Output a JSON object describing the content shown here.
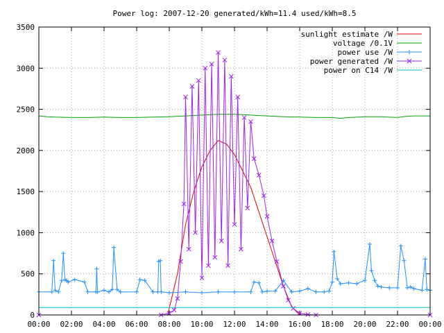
{
  "chart_data": {
    "type": "line",
    "title": "Power log: 2007-12-20 generated/kWh=11.4 used/kWh=8.5",
    "xlabel": "",
    "ylabel": "",
    "xlim": [
      0,
      24
    ],
    "ylim": [
      0,
      3500
    ],
    "grid": true,
    "legend_position": "top-right",
    "x_tick_labels": [
      "00:00",
      "02:00",
      "04:00",
      "06:00",
      "08:00",
      "10:00",
      "12:00",
      "14:00",
      "16:00",
      "18:00",
      "20:00",
      "22:00",
      "00:00"
    ],
    "y_tick_labels": [
      "0",
      "500",
      "1000",
      "1500",
      "2000",
      "2500",
      "3000",
      "3500"
    ],
    "y_ticks": [
      0,
      500,
      1000,
      1500,
      2000,
      2500,
      3000,
      3500
    ],
    "series": [
      {
        "name": "sunlight estimate /W",
        "color": "#e00000",
        "marker": "none",
        "x": [
          0,
          7.9,
          8.5,
          9,
          9.5,
          10,
          10.5,
          11,
          11.5,
          12,
          12.5,
          13,
          13.5,
          14,
          14.5,
          15,
          15.5,
          16,
          24
        ],
        "y": [
          0,
          0,
          500,
          1100,
          1500,
          1800,
          2000,
          2120,
          2080,
          1950,
          1750,
          1550,
          1250,
          950,
          650,
          350,
          100,
          0,
          0
        ]
      },
      {
        "name": "voltage /0.1V",
        "color": "#00a000",
        "marker": "none",
        "x": [
          0,
          0.5,
          1,
          2,
          3,
          4,
          5,
          6,
          7,
          8,
          9,
          10,
          11,
          12,
          13,
          14,
          15,
          16,
          17,
          18,
          18.5,
          19,
          20,
          21,
          22,
          22.5,
          23,
          24
        ],
        "y": [
          2420,
          2410,
          2405,
          2400,
          2400,
          2405,
          2400,
          2400,
          2405,
          2410,
          2420,
          2430,
          2440,
          2440,
          2430,
          2420,
          2410,
          2405,
          2400,
          2400,
          2390,
          2400,
          2410,
          2410,
          2400,
          2415,
          2420,
          2420
        ]
      },
      {
        "name": "power use /W",
        "color": "#1e90ff",
        "marker": "plus",
        "x": [
          0,
          0.8,
          0.9,
          1.0,
          1.2,
          1.4,
          1.5,
          1.6,
          1.7,
          1.8,
          2.2,
          2.8,
          3.0,
          3.5,
          3.55,
          3.6,
          4.0,
          4.3,
          4.5,
          4.6,
          4.8,
          5.0,
          6.0,
          6.2,
          6.5,
          7.0,
          7.3,
          7.35,
          7.45,
          7.5,
          8.0,
          9.0,
          10.0,
          11.0,
          12.0,
          13.0,
          13.2,
          13.5,
          13.7,
          14.0,
          14.5,
          15.0,
          15.5,
          16.0,
          16.5,
          17.0,
          17.5,
          17.8,
          18.0,
          18.1,
          18.3,
          18.5,
          19.0,
          19.5,
          20.0,
          20.3,
          20.4,
          20.6,
          20.8,
          21.0,
          21.5,
          22.0,
          22.2,
          22.4,
          22.6,
          22.8,
          23.0,
          23.5,
          23.7,
          23.8,
          24.0
        ],
        "y": [
          280,
          280,
          660,
          300,
          280,
          420,
          750,
          430,
          420,
          400,
          430,
          400,
          280,
          280,
          560,
          280,
          300,
          280,
          310,
          820,
          310,
          280,
          280,
          430,
          420,
          280,
          280,
          650,
          660,
          280,
          270,
          280,
          270,
          280,
          280,
          280,
          400,
          390,
          280,
          290,
          290,
          420,
          280,
          290,
          320,
          280,
          280,
          290,
          400,
          770,
          440,
          380,
          390,
          380,
          420,
          860,
          540,
          420,
          350,
          340,
          330,
          330,
          840,
          660,
          330,
          340,
          320,
          300,
          680,
          310,
          300
        ]
      },
      {
        "name": "power generated /W",
        "color": "#a020f0",
        "marker": "cross",
        "x": [
          0,
          7.5,
          8.0,
          8.3,
          8.5,
          8.7,
          8.9,
          9.0,
          9.2,
          9.4,
          9.6,
          9.8,
          10.0,
          10.2,
          10.4,
          10.6,
          10.8,
          11.0,
          11.2,
          11.4,
          11.6,
          11.8,
          12.0,
          12.2,
          12.4,
          12.6,
          12.8,
          13.0,
          13.2,
          13.5,
          13.8,
          14.0,
          14.3,
          14.6,
          15.0,
          15.3,
          15.6,
          16.0,
          16.5,
          17.0,
          24.0
        ],
        "y": [
          0,
          0,
          20,
          60,
          200,
          650,
          1350,
          2650,
          800,
          2780,
          1000,
          2850,
          450,
          3000,
          600,
          3050,
          700,
          3190,
          900,
          3100,
          600,
          2900,
          1100,
          2650,
          800,
          2400,
          1300,
          2350,
          1900,
          1700,
          1450,
          1200,
          900,
          650,
          350,
          180,
          80,
          20,
          5,
          0,
          0
        ]
      },
      {
        "name": "power on C14 /W",
        "color": "#00c0c0",
        "marker": "none",
        "x": [
          0,
          24
        ],
        "y": [
          90,
          90
        ]
      }
    ]
  }
}
